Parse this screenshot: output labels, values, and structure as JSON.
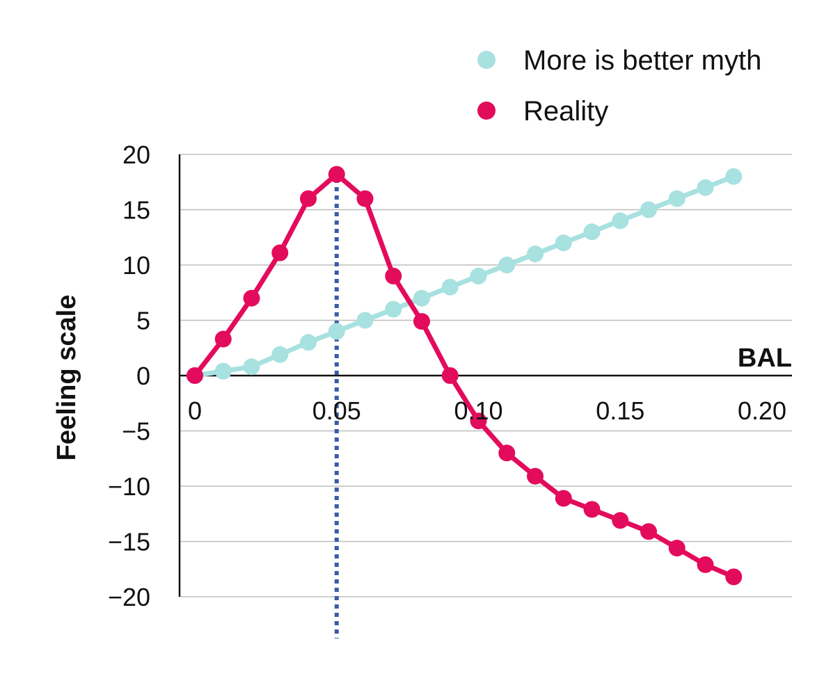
{
  "chart_data": {
    "type": "line",
    "xlabel": "BAL",
    "ylabel": "Feeling scale",
    "xlim": [
      0,
      0.2
    ],
    "ylim": [
      -20,
      20
    ],
    "x_ticks": [
      "0",
      "0.05",
      "0.10",
      "0.15",
      "0.20"
    ],
    "y_ticks": [
      "20",
      "15",
      "10",
      "5",
      "0",
      "−5",
      "−10",
      "−15",
      "−20"
    ],
    "grid": true,
    "legend_position": "top-right",
    "reference_line": {
      "x": 0.05,
      "style": "dotted",
      "color": "#3b5ba5"
    },
    "series": [
      {
        "name": "More is better myth",
        "color": "#a7e1e0",
        "points": [
          [
            0,
            0
          ],
          [
            0.01,
            0.4
          ],
          [
            0.02,
            0.8
          ],
          [
            0.03,
            1.9
          ],
          [
            0.04,
            3.0
          ],
          [
            0.05,
            4.0
          ],
          [
            0.06,
            5.0
          ],
          [
            0.07,
            6.0
          ],
          [
            0.08,
            7.0
          ],
          [
            0.09,
            8.0
          ],
          [
            0.1,
            9.0
          ],
          [
            0.11,
            10.0
          ],
          [
            0.12,
            11.0
          ],
          [
            0.13,
            12.0
          ],
          [
            0.14,
            13.0
          ],
          [
            0.15,
            14.0
          ],
          [
            0.16,
            15.0
          ],
          [
            0.17,
            16.0
          ],
          [
            0.18,
            17.0
          ],
          [
            0.19,
            18.0
          ]
        ]
      },
      {
        "name": "Reality",
        "color": "#e30b5c",
        "points": [
          [
            0,
            0
          ],
          [
            0.01,
            3.3
          ],
          [
            0.02,
            7.0
          ],
          [
            0.03,
            11.1
          ],
          [
            0.04,
            16.0
          ],
          [
            0.05,
            18.2
          ],
          [
            0.06,
            16.0
          ],
          [
            0.07,
            9.0
          ],
          [
            0.08,
            4.9
          ],
          [
            0.09,
            0
          ],
          [
            0.1,
            -4.1
          ],
          [
            0.11,
            -7.0
          ],
          [
            0.12,
            -9.1
          ],
          [
            0.13,
            -11.1
          ],
          [
            0.14,
            -12.1
          ],
          [
            0.15,
            -13.1
          ],
          [
            0.16,
            -14.1
          ],
          [
            0.17,
            -15.6
          ],
          [
            0.18,
            -17.1
          ],
          [
            0.19,
            -18.2
          ]
        ]
      }
    ]
  }
}
